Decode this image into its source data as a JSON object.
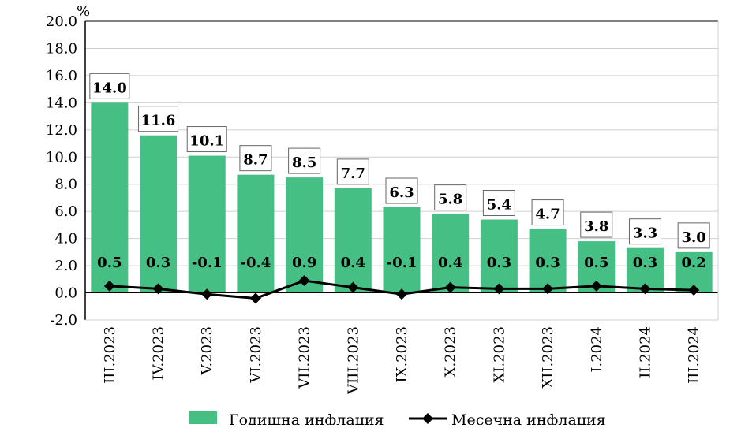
{
  "chart_data": {
    "type": "bar",
    "ylabel": "%",
    "ylim": [
      -2,
      20
    ],
    "yticks": [
      "20.0",
      "18.0",
      "16.0",
      "14.0",
      "12.0",
      "10.0",
      "8.0",
      "6.0",
      "4.0",
      "2.0",
      "0.0",
      "-2.0"
    ],
    "ytick_values": [
      20,
      18,
      16,
      14,
      12,
      10,
      8,
      6,
      4,
      2,
      0,
      -2
    ],
    "grid": true,
    "legend": "bottom",
    "categories": [
      "III.2023",
      "IV.2023",
      "V.2023",
      "VI.2023",
      "VII.2023",
      "VIII.2023",
      "IX.2023",
      "X.2023",
      "XI.2023",
      "XII.2023",
      "I.2024",
      "II.2024",
      "III.2024"
    ],
    "series": [
      {
        "name": "Годишна инфлация",
        "type": "bar",
        "color": "#45bf83",
        "values": [
          14.0,
          11.6,
          10.1,
          8.7,
          8.5,
          7.7,
          6.3,
          5.8,
          5.4,
          4.7,
          3.8,
          3.3,
          3.0
        ],
        "labels": [
          "14.0",
          "11.6",
          "10.1",
          "8.7",
          "8.5",
          "7.7",
          "6.3",
          "5.8",
          "5.4",
          "4.7",
          "3.8",
          "3.3",
          "3.0"
        ]
      },
      {
        "name": "Месечна инфлация",
        "type": "line",
        "color": "#000000",
        "marker": "diamond",
        "values": [
          0.5,
          0.3,
          -0.1,
          -0.4,
          0.9,
          0.4,
          -0.1,
          0.4,
          0.3,
          0.3,
          0.5,
          0.3,
          0.2
        ],
        "labels": [
          "0.5",
          "0.3",
          "-0.1",
          "-0.4",
          "0.9",
          "0.4",
          "-0.1",
          "0.4",
          "0.3",
          "0.3",
          "0.5",
          "0.3",
          "0.2"
        ]
      }
    ]
  }
}
